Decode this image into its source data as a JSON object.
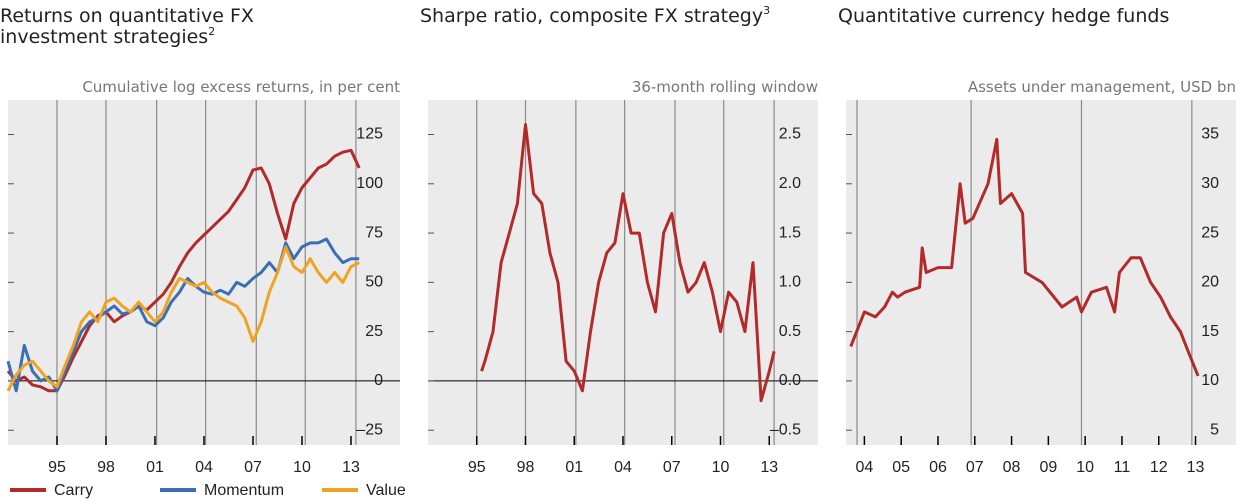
{
  "chart_data": [
    {
      "type": "line",
      "title": "Returns on quantitative FX investment strategies",
      "title_footnote": "2",
      "subtitle": "Cumulative log excess returns, in per cent",
      "x": [
        1992,
        1992.5,
        1993,
        1993.5,
        1994,
        1994.5,
        1995,
        1995.5,
        1996,
        1996.5,
        1997,
        1997.5,
        1998,
        1998.5,
        1999,
        1999.5,
        2000,
        2000.5,
        2001,
        2001.5,
        2002,
        2002.5,
        2003,
        2003.5,
        2004,
        2004.5,
        2005,
        2005.5,
        2006,
        2006.5,
        2007,
        2007.5,
        2008,
        2008.5,
        2009,
        2009.5,
        2010,
        2010.5,
        2011,
        2011.5,
        2012,
        2012.5,
        2013,
        2013.5
      ],
      "series": [
        {
          "name": "Carry",
          "color": "#b22a2a",
          "values": [
            5,
            0,
            2,
            -2,
            -3,
            -5,
            -5,
            3,
            12,
            20,
            28,
            33,
            35,
            30,
            33,
            35,
            38,
            36,
            40,
            44,
            50,
            58,
            65,
            70,
            74,
            78,
            82,
            86,
            92,
            98,
            107,
            108,
            100,
            85,
            72,
            90,
            98,
            103,
            108,
            110,
            114,
            116,
            117,
            108
          ]
        },
        {
          "name": "Momentum",
          "color": "#3a6fb5",
          "values": [
            10,
            -5,
            18,
            5,
            0,
            2,
            -5,
            5,
            15,
            25,
            30,
            32,
            35,
            38,
            34,
            35,
            38,
            30,
            28,
            32,
            40,
            45,
            52,
            48,
            45,
            44,
            46,
            44,
            50,
            48,
            52,
            55,
            60,
            55,
            70,
            62,
            68,
            70,
            70,
            72,
            65,
            60,
            62,
            62
          ]
        },
        {
          "name": "Value",
          "color": "#efa323",
          "values": [
            -5,
            3,
            8,
            10,
            5,
            0,
            -3,
            8,
            18,
            30,
            35,
            30,
            40,
            42,
            38,
            35,
            40,
            35,
            30,
            35,
            45,
            52,
            50,
            48,
            50,
            45,
            42,
            40,
            38,
            32,
            20,
            30,
            45,
            55,
            68,
            58,
            55,
            62,
            55,
            50,
            55,
            50,
            58,
            60
          ]
        }
      ],
      "xlim": [
        1992,
        2016
      ],
      "xticks": [
        {
          "value": 1995,
          "label": "95"
        },
        {
          "value": 1998,
          "label": "98"
        },
        {
          "value": 2001,
          "label": "01"
        },
        {
          "value": 2004,
          "label": "04"
        },
        {
          "value": 2007,
          "label": "07"
        },
        {
          "value": 2010,
          "label": "10"
        },
        {
          "value": 2013,
          "label": "13"
        }
      ],
      "ylim": [
        -32.5,
        142.5
      ],
      "yticks": [
        {
          "value": -25,
          "label": "–25"
        },
        0,
        25,
        50,
        75,
        100,
        125
      ],
      "vlines": [
        1995,
        1998,
        2001.1,
        2004.1,
        2007.2,
        2010.2,
        2013.3
      ],
      "legend": "bottom"
    },
    {
      "type": "line",
      "title": "Sharpe ratio, composite FX strategy",
      "title_footnote": "3",
      "subtitle": "36-month rolling window",
      "x": [
        1995.3,
        1995.5,
        1996,
        1996.5,
        1997,
        1997.5,
        1998,
        1998.5,
        1999,
        1999.5,
        2000,
        2000.5,
        2001,
        2001.5,
        2002,
        2002.5,
        2003,
        2003.5,
        2004,
        2004.5,
        2005,
        2005.5,
        2006,
        2006.5,
        2007,
        2007.5,
        2008,
        2008.5,
        2009,
        2009.5,
        2010,
        2010.5,
        2011,
        2011.5,
        2012,
        2012.5,
        2013,
        2013.3
      ],
      "values": [
        0.1,
        0.2,
        0.5,
        1.2,
        1.5,
        1.8,
        2.6,
        1.9,
        1.8,
        1.3,
        1.0,
        0.2,
        0.1,
        -0.1,
        0.5,
        1.0,
        1.3,
        1.4,
        1.9,
        1.5,
        1.5,
        1.0,
        0.7,
        1.5,
        1.7,
        1.2,
        0.9,
        1.0,
        1.2,
        0.9,
        0.5,
        0.9,
        0.8,
        0.5,
        1.2,
        -0.2,
        0.1,
        0.3
      ],
      "color": "#b22a2a",
      "xlim": [
        1992,
        2016
      ],
      "xticks": [
        {
          "value": 1995,
          "label": "95"
        },
        {
          "value": 1998,
          "label": "98"
        },
        {
          "value": 2001,
          "label": "01"
        },
        {
          "value": 2004,
          "label": "04"
        },
        {
          "value": 2007,
          "label": "07"
        },
        {
          "value": 2010,
          "label": "10"
        },
        {
          "value": 2013,
          "label": "13"
        }
      ],
      "ylim": [
        -0.65,
        2.85
      ],
      "yticks": [
        {
          "value": -0.5,
          "label": "–0.5"
        },
        {
          "value": 0,
          "label": "0.0"
        },
        0.5,
        {
          "value": 1,
          "label": "1.0"
        },
        1.5,
        {
          "value": 2,
          "label": "2.0"
        },
        2.5
      ],
      "vlines": [
        1995,
        1998,
        2001.1,
        2004.1,
        2007.2,
        2010.2,
        2013.3
      ]
    },
    {
      "type": "line",
      "title": "Quantitative currency hedge funds",
      "subtitle": "Assets under management, USD bn",
      "x": [
        2004.13,
        2004.5,
        2004.8,
        2005.05,
        2005.26,
        2005.4,
        2005.6,
        2006,
        2006.07,
        2006.18,
        2006.5,
        2006.87,
        2007.1,
        2007.24,
        2007.45,
        2007.86,
        2008.1,
        2008.2,
        2008.5,
        2008.8,
        2008.88,
        2009.33,
        2009.87,
        2010.27,
        2010.4,
        2010.67,
        2011.08,
        2011.3,
        2011.43,
        2011.75,
        2012,
        2012.28,
        2012.55,
        2012.82,
        2013.09,
        2013.3,
        2013.57
      ],
      "values": [
        13.5,
        17,
        16.5,
        17.5,
        19,
        18.5,
        19,
        19.5,
        23.5,
        21,
        21.5,
        21.5,
        30,
        26,
        26.5,
        30,
        34.5,
        28,
        29,
        27,
        21,
        20,
        17.5,
        18.5,
        17,
        19,
        19.5,
        17,
        21,
        22.5,
        22.5,
        20,
        18.5,
        16.5,
        15,
        13,
        10.5
      ],
      "color": "#b22a2a",
      "xlim": [
        2004,
        2014.6
      ],
      "xticks": [
        {
          "value": 2004.5,
          "label": "04"
        },
        {
          "value": 2005.5,
          "label": "05"
        },
        {
          "value": 2006.5,
          "label": "06"
        },
        {
          "value": 2007.5,
          "label": "07"
        },
        {
          "value": 2008.5,
          "label": "08"
        },
        {
          "value": 2009.5,
          "label": "09"
        },
        {
          "value": 2010.5,
          "label": "10"
        },
        {
          "value": 2011.5,
          "label": "11"
        },
        {
          "value": 2012.5,
          "label": "12"
        },
        {
          "value": 2013.5,
          "label": "13"
        }
      ],
      "ylim": [
        3.5,
        38.5
      ],
      "yticks": [
        5,
        10,
        15,
        20,
        25,
        30,
        35
      ],
      "vlines": [
        2004.3,
        2007.4,
        2010.4,
        2013.4
      ]
    }
  ]
}
